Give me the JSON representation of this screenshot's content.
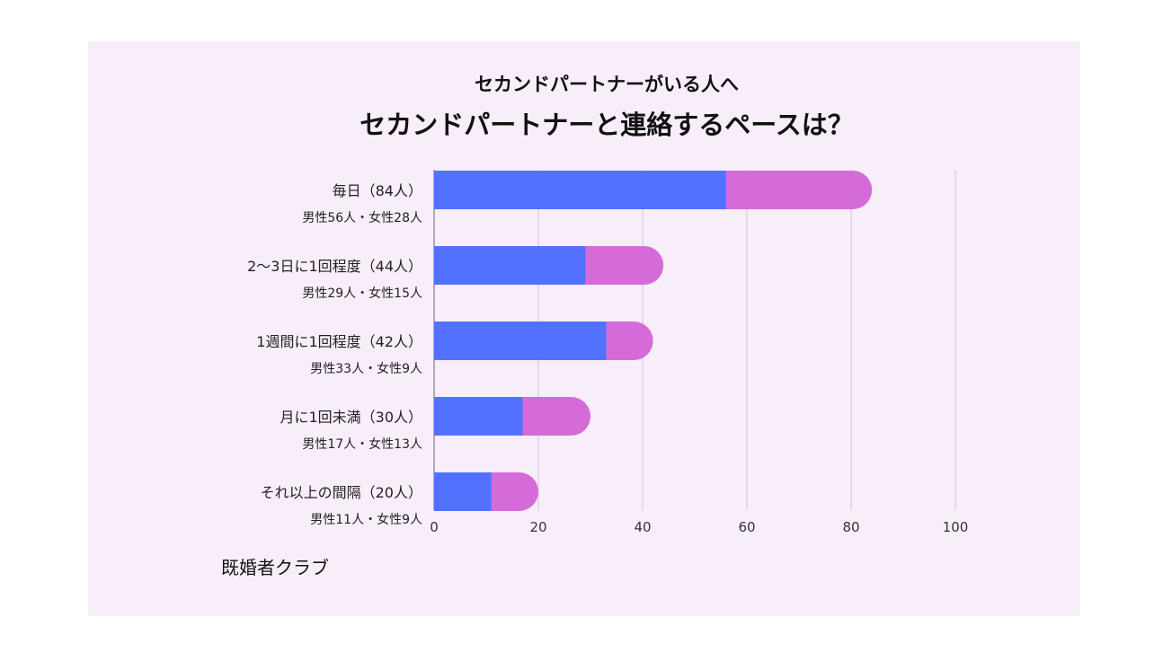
{
  "header": {
    "subtitle": "セカンドパートナーがいる人へ",
    "title": "セカンドパートナーと連絡するペースは？"
  },
  "source": "既婚者クラブ",
  "colors": {
    "male": "#5271ff",
    "female": "#d56bd9",
    "grid": "#ddd2e6",
    "card": "#f8eefa"
  },
  "chart_data": {
    "type": "bar",
    "orientation": "horizontal",
    "stacked": true,
    "categories": [
      "毎日（84人）",
      "2～3日に1回程度（44人）",
      "1週間に1回程度（42人）",
      "月に1回未満（30人）",
      "それ以上の間隔（20人）"
    ],
    "sublabels": [
      "男性56人・女性28人",
      "男性29人・女性15人",
      "男性33人・女性9人",
      "男性17人・女性13人",
      "男性11人・女性9人"
    ],
    "series": [
      {
        "values": [
          56,
          29,
          33,
          17,
          11
        ]
      },
      {
        "values": [
          28,
          15,
          9,
          13,
          9
        ]
      }
    ],
    "xlim": [
      0,
      100
    ],
    "xticks": [
      "0",
      "20",
      "40",
      "60",
      "80",
      "100"
    ],
    "grid": true
  }
}
